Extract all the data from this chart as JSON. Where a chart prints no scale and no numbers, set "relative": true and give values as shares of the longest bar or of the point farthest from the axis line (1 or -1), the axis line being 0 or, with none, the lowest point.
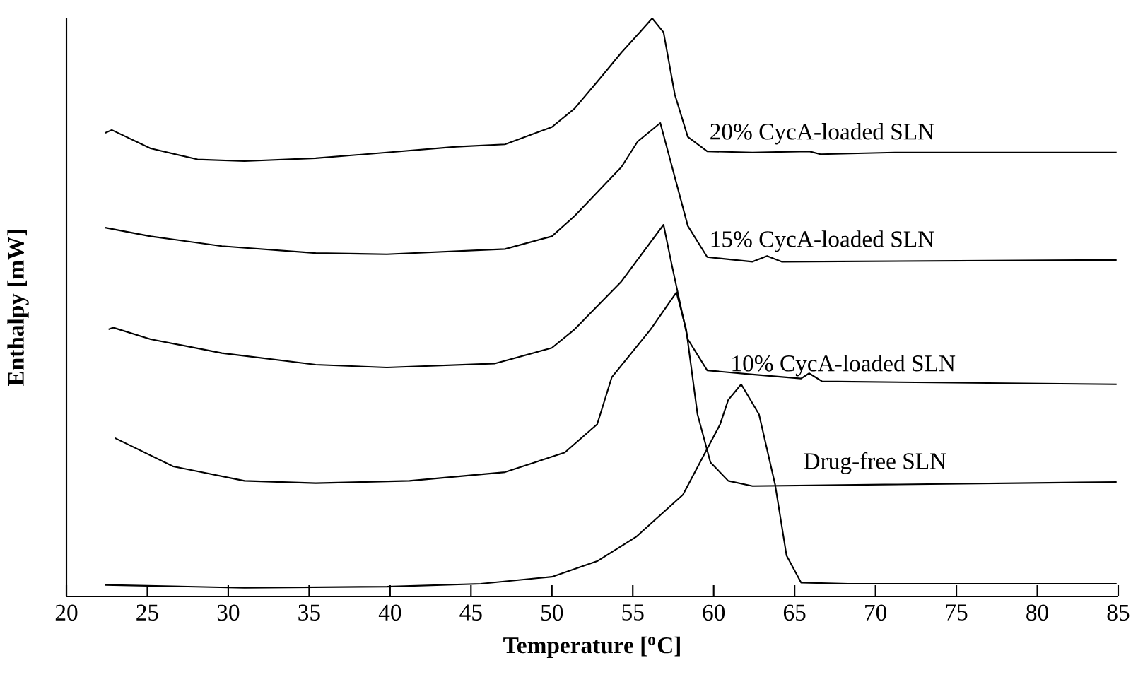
{
  "chart_data": {
    "type": "line",
    "relative": true,
    "xlabel": "Temperature [$^{o}$C]",
    "ylabel": "Enthalpy [mW]",
    "xlim": [
      20,
      85
    ],
    "xticks": [
      20,
      25,
      30,
      35,
      40,
      45,
      50,
      55,
      60,
      65,
      70,
      75,
      80,
      85
    ],
    "legend": false,
    "marker": "none",
    "line_style": "solid",
    "series": [
      {
        "name": "20% CycA-loaded SLN",
        "color": "#000000",
        "x": [
          22.4,
          22.8,
          25.2,
          28.1,
          31,
          35.4,
          39.8,
          44.1,
          47.1,
          50,
          51.4,
          53,
          54.3,
          55.5,
          56.2,
          56.9,
          57.6,
          58.4,
          59.6,
          62.4,
          65.9,
          66.6,
          71.2,
          84.9
        ],
        "values": [
          0.802,
          0.807,
          0.775,
          0.756,
          0.753,
          0.758,
          0.768,
          0.778,
          0.782,
          0.812,
          0.844,
          0.897,
          0.941,
          0.978,
          1.0,
          0.976,
          0.868,
          0.795,
          0.77,
          0.768,
          0.77,
          0.765,
          0.768,
          0.768
        ]
      },
      {
        "name": "15% CycA-loaded SLN",
        "color": "#000000",
        "x": [
          22.4,
          25.2,
          29.6,
          35.4,
          39.8,
          47.1,
          50,
          51.4,
          54.3,
          55.3,
          56.7,
          57.4,
          58.4,
          59.6,
          62.4,
          63.3,
          64.2,
          84.9
        ],
        "values": [
          0.638,
          0.623,
          0.606,
          0.594,
          0.592,
          0.601,
          0.623,
          0.658,
          0.743,
          0.787,
          0.819,
          0.746,
          0.641,
          0.587,
          0.579,
          0.589,
          0.579,
          0.582
        ]
      },
      {
        "name": "10% CycA-loaded SLN",
        "color": "#000000",
        "x": [
          22.6,
          22.9,
          25.2,
          29.6,
          35.4,
          39.8,
          46.5,
          50,
          51.4,
          54.3,
          56.9,
          57.4,
          58.4,
          59.6,
          62.4,
          65.4,
          65.9,
          66.7,
          84.9
        ],
        "values": [
          0.462,
          0.465,
          0.445,
          0.421,
          0.401,
          0.396,
          0.403,
          0.43,
          0.462,
          0.545,
          0.643,
          0.575,
          0.445,
          0.391,
          0.384,
          0.377,
          0.386,
          0.372,
          0.367
        ]
      },
      {
        "name": "Drug-free SLN",
        "color": "#000000",
        "x": [
          23,
          26.6,
          31,
          35.4,
          41.2,
          47.1,
          50.8,
          52.8,
          53.7,
          56.1,
          57.7,
          58.3,
          59,
          59.8,
          60.9,
          62.4,
          84.9
        ],
        "values": [
          0.274,
          0.225,
          0.2,
          0.196,
          0.2,
          0.215,
          0.249,
          0.298,
          0.379,
          0.462,
          0.526,
          0.462,
          0.315,
          0.232,
          0.2,
          0.191,
          0.198
        ]
      },
      {
        "color": "#000000",
        "x": [
          22.4,
          31,
          39.8,
          45.6,
          50,
          52.8,
          55.2,
          58.1,
          60.4,
          60.9,
          61.7,
          62.8,
          63.8,
          64.5,
          65.4,
          68.3,
          84.9
        ],
        "values": [
          0.02,
          0.015,
          0.017,
          0.022,
          0.034,
          0.061,
          0.103,
          0.176,
          0.298,
          0.34,
          0.367,
          0.315,
          0.193,
          0.071,
          0.024,
          0.022,
          0.022
        ]
      }
    ]
  }
}
